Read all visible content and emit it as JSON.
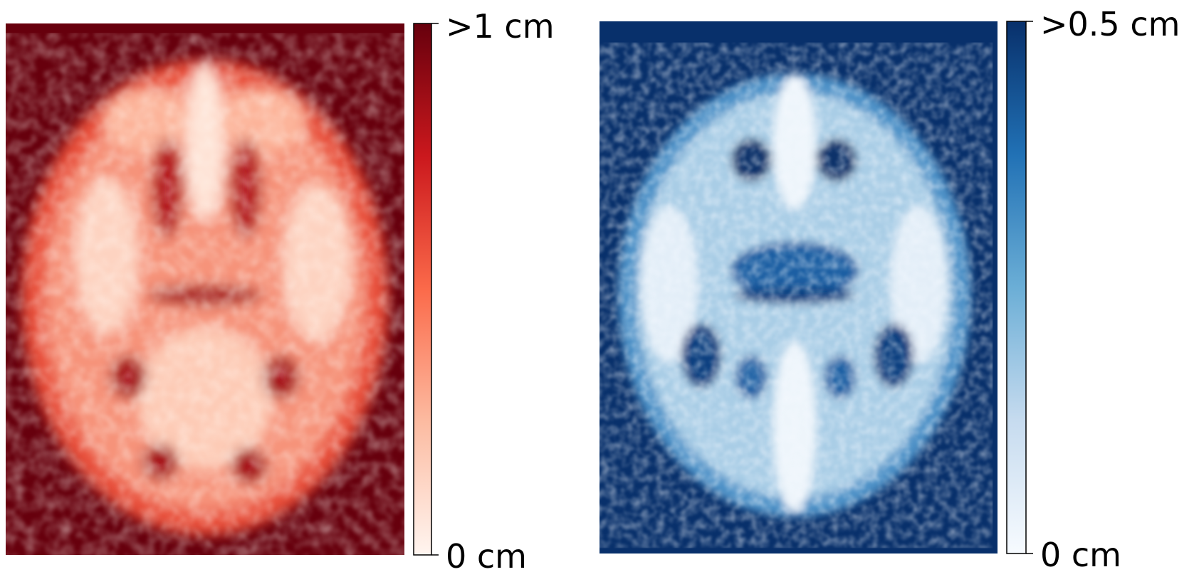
{
  "panels": [
    {
      "colorbar": {
        "top_label": ">1 cm",
        "bottom_label": "0 cm"
      }
    },
    {
      "colorbar": {
        "top_label": ">0.5 cm",
        "bottom_label": "0 cm"
      }
    }
  ]
}
